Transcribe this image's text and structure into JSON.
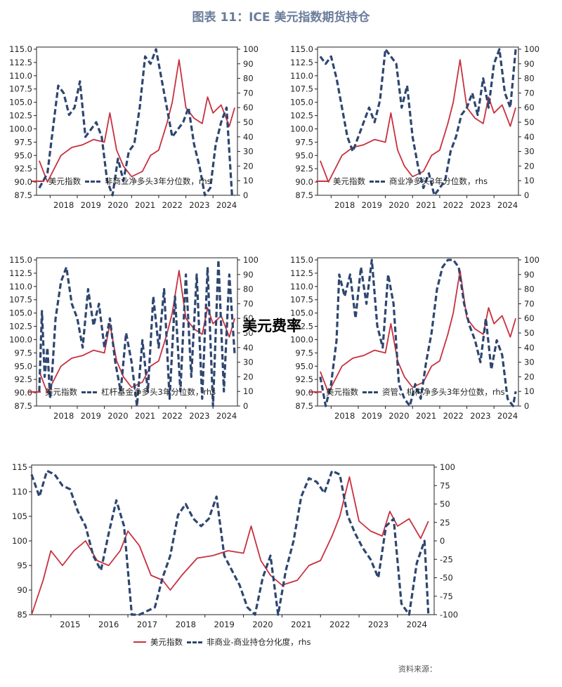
{
  "title": "图表 11：ICE 美元指数期货持仓",
  "overlay": "美元费率",
  "footer": "资料来源：",
  "colors": {
    "dxy": "#c8303f",
    "position": "#2e4670"
  },
  "chart_data": [
    {
      "type": "line",
      "years": [
        "2018",
        "2019",
        "2020",
        "2021",
        "2022",
        "2023",
        "2024"
      ],
      "left_axis": {
        "ticks": [
          87.5,
          90.0,
          92.5,
          95.0,
          97.5,
          100.0,
          102.5,
          105.0,
          107.5,
          110.0,
          112.5,
          115.0
        ],
        "range": [
          87.5,
          115.0
        ]
      },
      "right_axis": {
        "ticks": [
          0,
          10,
          20,
          30,
          40,
          50,
          60,
          70,
          80,
          90,
          100
        ],
        "range": [
          0,
          100
        ]
      },
      "legend": [
        "美元指数",
        "非商业净多头3年分位数，rhs"
      ],
      "series": [
        {
          "name": "美元指数",
          "axis": "left",
          "x": [
            2017.6,
            2017.9,
            2018.1,
            2018.4,
            2018.8,
            2019.2,
            2019.6,
            2020.0,
            2020.2,
            2020.45,
            2020.7,
            2021.0,
            2021.4,
            2021.7,
            2022.0,
            2022.3,
            2022.5,
            2022.75,
            2023.0,
            2023.3,
            2023.6,
            2023.8,
            2024.0,
            2024.3,
            2024.6,
            2024.8
          ],
          "y": [
            94,
            90,
            92,
            95,
            96.5,
            97,
            98,
            97.5,
            103,
            96,
            93,
            91,
            92,
            95,
            96,
            101,
            105,
            113,
            104,
            102,
            101,
            106,
            103,
            104.5,
            100.5,
            104
          ]
        },
        {
          "name": "非商业净多头3年分位数",
          "axis": "right",
          "x": [
            2017.6,
            2017.9,
            2018.1,
            2018.3,
            2018.5,
            2018.7,
            2018.9,
            2019.1,
            2019.3,
            2019.5,
            2019.7,
            2019.9,
            2020.1,
            2020.3,
            2020.5,
            2020.7,
            2020.9,
            2021.1,
            2021.3,
            2021.5,
            2021.7,
            2021.9,
            2022.1,
            2022.3,
            2022.5,
            2022.7,
            2022.9,
            2023.1,
            2023.3,
            2023.5,
            2023.7,
            2023.9,
            2024.1,
            2024.3,
            2024.5,
            2024.7,
            2024.8
          ],
          "y": [
            5,
            15,
            45,
            75,
            70,
            55,
            60,
            78,
            40,
            45,
            50,
            40,
            10,
            0,
            25,
            10,
            30,
            35,
            60,
            95,
            90,
            100,
            80,
            60,
            40,
            45,
            50,
            60,
            35,
            20,
            0,
            5,
            35,
            50,
            60,
            0,
            0
          ]
        }
      ]
    },
    {
      "type": "line",
      "years": [
        "2018",
        "2019",
        "2020",
        "2021",
        "2022",
        "2023",
        "2024"
      ],
      "left_axis": {
        "ticks": [
          87.5,
          90.0,
          92.5,
          95.0,
          97.5,
          100.0,
          102.5,
          105.0,
          107.5,
          110.0,
          112.5,
          115.0
        ],
        "range": [
          87.5,
          115.0
        ]
      },
      "right_axis": {
        "ticks": [
          0,
          10,
          20,
          30,
          40,
          50,
          60,
          70,
          80,
          90,
          100
        ],
        "range": [
          0,
          100
        ]
      },
      "legend": [
        "美元指数",
        "商业净多头3年分位数，rhs"
      ],
      "series": [
        {
          "name": "美元指数",
          "axis": "left",
          "x": [
            2017.6,
            2017.9,
            2018.1,
            2018.4,
            2018.8,
            2019.2,
            2019.6,
            2020.0,
            2020.2,
            2020.45,
            2020.7,
            2021.0,
            2021.4,
            2021.7,
            2022.0,
            2022.3,
            2022.5,
            2022.75,
            2023.0,
            2023.3,
            2023.6,
            2023.8,
            2024.0,
            2024.3,
            2024.6,
            2024.8
          ],
          "y": [
            94,
            90,
            92,
            95,
            96.5,
            97,
            98,
            97.5,
            103,
            96,
            93,
            91,
            92,
            95,
            96,
            101,
            105,
            113,
            104,
            102,
            101,
            106,
            103,
            104.5,
            100.5,
            104
          ]
        },
        {
          "name": "商业净多头3年分位数",
          "axis": "right",
          "x": [
            2017.6,
            2017.8,
            2018.0,
            2018.2,
            2018.4,
            2018.6,
            2018.8,
            2019.0,
            2019.2,
            2019.4,
            2019.6,
            2019.8,
            2020.0,
            2020.2,
            2020.4,
            2020.6,
            2020.8,
            2021.0,
            2021.2,
            2021.4,
            2021.6,
            2021.8,
            2022.0,
            2022.2,
            2022.4,
            2022.6,
            2022.8,
            2023.0,
            2023.2,
            2023.4,
            2023.6,
            2023.8,
            2024.0,
            2024.2,
            2024.4,
            2024.6,
            2024.8
          ],
          "y": [
            95,
            90,
            95,
            80,
            60,
            40,
            30,
            40,
            50,
            60,
            50,
            65,
            100,
            95,
            90,
            60,
            75,
            40,
            20,
            5,
            15,
            0,
            5,
            10,
            30,
            40,
            55,
            60,
            70,
            55,
            80,
            60,
            90,
            100,
            70,
            60,
            100
          ]
        }
      ]
    },
    {
      "type": "line",
      "years": [
        "2018",
        "2019",
        "2020",
        "2021",
        "2022",
        "2023",
        "2024"
      ],
      "left_axis": {
        "ticks": [
          87.5,
          90.0,
          92.5,
          95.0,
          97.5,
          100.0,
          102.5,
          105.0,
          107.5,
          110.0,
          112.5,
          115.0
        ],
        "range": [
          87.5,
          115.0
        ]
      },
      "right_axis": {
        "ticks": [
          0,
          10,
          20,
          30,
          40,
          50,
          60,
          70,
          80,
          90,
          100
        ],
        "range": [
          0,
          100
        ]
      },
      "legend": [
        "美元指数",
        "杠杆基金净多头3年分位数，rhs"
      ],
      "series": [
        {
          "name": "美元指数",
          "axis": "left",
          "x": [
            2017.6,
            2017.9,
            2018.1,
            2018.4,
            2018.8,
            2019.2,
            2019.6,
            2020.0,
            2020.2,
            2020.45,
            2020.7,
            2021.0,
            2021.4,
            2021.7,
            2022.0,
            2022.3,
            2022.5,
            2022.75,
            2023.0,
            2023.3,
            2023.6,
            2023.8,
            2024.0,
            2024.3,
            2024.6,
            2024.8
          ],
          "y": [
            94,
            90,
            92,
            95,
            96.5,
            97,
            98,
            97.5,
            103,
            96,
            93,
            91,
            92,
            95,
            96,
            101,
            105,
            113,
            104,
            102,
            101,
            106,
            103,
            104.5,
            100.5,
            104
          ]
        },
        {
          "name": "杠杆基金净多头3年分位数",
          "axis": "right",
          "x": [
            2017.6,
            2017.7,
            2017.8,
            2017.9,
            2018.0,
            2018.1,
            2018.2,
            2018.4,
            2018.6,
            2018.8,
            2019.0,
            2019.2,
            2019.4,
            2019.6,
            2019.8,
            2020.0,
            2020.2,
            2020.4,
            2020.6,
            2020.8,
            2021.0,
            2021.2,
            2021.4,
            2021.6,
            2021.8,
            2022.0,
            2022.2,
            2022.4,
            2022.6,
            2022.8,
            2023.0,
            2023.2,
            2023.4,
            2023.6,
            2023.8,
            2024.0,
            2024.2,
            2024.4,
            2024.6,
            2024.8
          ],
          "y": [
            10,
            65,
            20,
            40,
            5,
            30,
            60,
            85,
            95,
            70,
            60,
            40,
            80,
            55,
            70,
            40,
            60,
            30,
            10,
            50,
            30,
            0,
            45,
            10,
            75,
            40,
            80,
            5,
            75,
            10,
            90,
            20,
            90,
            5,
            95,
            0,
            100,
            10,
            90,
            35
          ]
        }
      ]
    },
    {
      "type": "line",
      "years": [
        "2018",
        "2019",
        "2020",
        "2021",
        "2022",
        "2023",
        "2024"
      ],
      "left_axis": {
        "ticks": [
          87.5,
          90.0,
          92.5,
          95.0,
          97.5,
          100.0,
          102.5,
          105.0,
          107.5,
          110.0,
          112.5,
          115.0
        ],
        "range": [
          87.5,
          115.0
        ]
      },
      "right_axis": {
        "ticks": [
          0,
          10,
          20,
          30,
          40,
          50,
          60,
          70,
          80,
          90,
          100
        ],
        "range": [
          0,
          100
        ]
      },
      "legend": [
        "美元指数",
        "资管、机构净多头3年分位数，rhs"
      ],
      "series": [
        {
          "name": "美元指数",
          "axis": "left",
          "x": [
            2017.6,
            2017.9,
            2018.1,
            2018.4,
            2018.8,
            2019.2,
            2019.6,
            2020.0,
            2020.2,
            2020.45,
            2020.7,
            2021.0,
            2021.4,
            2021.7,
            2022.0,
            2022.3,
            2022.5,
            2022.75,
            2023.0,
            2023.3,
            2023.6,
            2023.8,
            2024.0,
            2024.3,
            2024.6,
            2024.8
          ],
          "y": [
            94,
            90,
            92,
            95,
            96.5,
            97,
            98,
            97.5,
            103,
            96,
            93,
            91,
            92,
            95,
            96,
            101,
            105,
            113,
            104,
            102,
            101,
            106,
            103,
            104.5,
            100.5,
            104
          ]
        },
        {
          "name": "资管、机构净多头3年分位数",
          "axis": "right",
          "x": [
            2017.6,
            2017.8,
            2018.0,
            2018.2,
            2018.3,
            2018.5,
            2018.7,
            2018.9,
            2019.1,
            2019.3,
            2019.5,
            2019.7,
            2019.9,
            2020.1,
            2020.3,
            2020.5,
            2020.7,
            2020.9,
            2021.1,
            2021.3,
            2021.5,
            2021.7,
            2021.9,
            2022.1,
            2022.3,
            2022.5,
            2022.7,
            2022.9,
            2023.1,
            2023.3,
            2023.5,
            2023.7,
            2023.9,
            2024.1,
            2024.3,
            2024.5,
            2024.7,
            2024.8
          ],
          "y": [
            20,
            0,
            15,
            45,
            90,
            75,
            90,
            60,
            95,
            70,
            100,
            55,
            40,
            90,
            70,
            15,
            5,
            0,
            15,
            5,
            30,
            50,
            80,
            95,
            100,
            100,
            95,
            70,
            55,
            45,
            30,
            60,
            25,
            45,
            35,
            5,
            0,
            10
          ]
        }
      ]
    },
    {
      "type": "line",
      "years": [
        "2015",
        "2016",
        "2017",
        "2018",
        "2019",
        "2020",
        "2021",
        "2022",
        "2023",
        "2024"
      ],
      "left_axis": {
        "ticks": [
          85,
          90,
          95,
          100,
          105,
          110,
          115
        ],
        "range": [
          85,
          115
        ]
      },
      "right_axis": {
        "ticks": [
          -100,
          -75,
          -50,
          -25,
          0,
          25,
          50,
          75,
          100
        ],
        "range": [
          -100,
          100
        ]
      },
      "legend": [
        "美元指数",
        "非商业-商业持仓分化度，rhs"
      ],
      "series": [
        {
          "name": "美元指数",
          "axis": "left",
          "x": [
            2014.5,
            2014.8,
            2015.0,
            2015.3,
            2015.6,
            2015.9,
            2016.2,
            2016.5,
            2016.8,
            2017.0,
            2017.3,
            2017.6,
            2017.9,
            2018.1,
            2018.4,
            2018.8,
            2019.2,
            2019.6,
            2020.0,
            2020.2,
            2020.45,
            2020.7,
            2021.0,
            2021.4,
            2021.7,
            2022.0,
            2022.3,
            2022.5,
            2022.75,
            2023.0,
            2023.3,
            2023.6,
            2023.8,
            2024.0,
            2024.3,
            2024.6,
            2024.8
          ],
          "y": [
            85,
            92,
            98,
            95,
            98,
            100,
            96,
            95,
            98,
            102,
            99,
            93,
            92,
            90,
            93,
            96.5,
            97,
            98,
            97.5,
            103,
            96,
            93,
            91,
            92,
            95,
            96,
            101,
            105,
            113,
            104,
            102,
            101,
            106,
            103,
            104.5,
            100.5,
            104
          ]
        },
        {
          "name": "非商业-商业持仓分化度",
          "axis": "right",
          "x": [
            2014.5,
            2014.7,
            2014.9,
            2015.1,
            2015.3,
            2015.5,
            2015.7,
            2015.9,
            2016.1,
            2016.3,
            2016.5,
            2016.7,
            2016.9,
            2017.1,
            2017.3,
            2017.5,
            2017.7,
            2017.9,
            2018.1,
            2018.3,
            2018.5,
            2018.7,
            2018.9,
            2019.1,
            2019.3,
            2019.5,
            2019.7,
            2019.9,
            2020.1,
            2020.3,
            2020.5,
            2020.7,
            2020.9,
            2021.1,
            2021.3,
            2021.5,
            2021.7,
            2021.9,
            2022.1,
            2022.3,
            2022.5,
            2022.7,
            2022.9,
            2023.1,
            2023.3,
            2023.5,
            2023.7,
            2023.9,
            2024.1,
            2024.3,
            2024.5,
            2024.7,
            2024.8
          ],
          "y": [
            90,
            60,
            95,
            90,
            75,
            70,
            40,
            20,
            -20,
            -40,
            10,
            55,
            20,
            -100,
            -100,
            -95,
            -90,
            -50,
            -20,
            35,
            50,
            30,
            20,
            30,
            60,
            -20,
            -40,
            -60,
            -90,
            -100,
            -50,
            -20,
            -100,
            -40,
            0,
            60,
            85,
            80,
            65,
            95,
            90,
            35,
            10,
            -10,
            -25,
            -50,
            20,
            30,
            -85,
            -100,
            -30,
            0,
            -100
          ]
        }
      ]
    }
  ]
}
